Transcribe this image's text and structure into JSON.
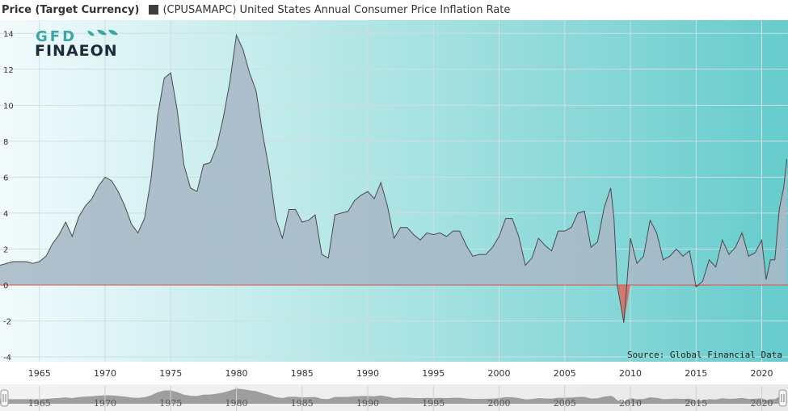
{
  "header": {
    "axis_title": "Price (Target Currency)",
    "legend_label": "(CPUSAMAPC) United States Annual Consumer Price Inflation Rate"
  },
  "logo": {
    "line1": "GFD",
    "line2": "FINAEON"
  },
  "source": "Source: Global Financial Data",
  "colors": {
    "area_positive": "#a9b9c8",
    "area_negative": "#d07a72",
    "line": "#4a4a4a",
    "bg_left": "#f2fbfc",
    "bg_right": "#66cccc",
    "zero_line": "#d9534f",
    "logo": "#1e2a38",
    "logo_accent": "#3aa6a6"
  },
  "chart_data": {
    "type": "area",
    "title": "",
    "xlabel": "",
    "ylabel": "Price (Target Currency)",
    "series": [
      {
        "name": "(CPUSAMAPC) United States Annual Consumer Price Inflation Rate",
        "x": [
          "1962-01",
          "1962-07",
          "1963-01",
          "1963-07",
          "1964-01",
          "1964-07",
          "1965-01",
          "1965-07",
          "1966-01",
          "1966-07",
          "1967-01",
          "1967-07",
          "1968-01",
          "1968-07",
          "1969-01",
          "1969-07",
          "1970-01",
          "1970-07",
          "1971-01",
          "1971-07",
          "1972-01",
          "1972-07",
          "1973-01",
          "1973-07",
          "1974-01",
          "1974-07",
          "1975-01",
          "1975-07",
          "1976-01",
          "1976-07",
          "1977-01",
          "1977-07",
          "1978-01",
          "1978-07",
          "1979-01",
          "1979-07",
          "1980-01",
          "1980-07",
          "1981-01",
          "1981-07",
          "1982-01",
          "1982-07",
          "1983-01",
          "1983-07",
          "1984-01",
          "1984-07",
          "1985-01",
          "1985-07",
          "1986-01",
          "1986-07",
          "1987-01",
          "1987-07",
          "1988-01",
          "1988-07",
          "1989-01",
          "1989-07",
          "1990-01",
          "1990-07",
          "1991-01",
          "1991-07",
          "1992-01",
          "1992-07",
          "1993-01",
          "1993-07",
          "1994-01",
          "1994-07",
          "1995-01",
          "1995-07",
          "1996-01",
          "1996-07",
          "1997-01",
          "1997-07",
          "1998-01",
          "1998-07",
          "1999-01",
          "1999-07",
          "2000-01",
          "2000-07",
          "2001-01",
          "2001-07",
          "2002-01",
          "2002-07",
          "2003-01",
          "2003-07",
          "2004-01",
          "2004-07",
          "2005-01",
          "2005-07",
          "2006-01",
          "2006-07",
          "2007-01",
          "2007-07",
          "2008-01",
          "2008-07",
          "2008-10",
          "2009-01",
          "2009-07",
          "2010-01",
          "2010-07",
          "2011-01",
          "2011-07",
          "2012-01",
          "2012-07",
          "2013-01",
          "2013-07",
          "2014-01",
          "2014-07",
          "2015-01",
          "2015-07",
          "2016-01",
          "2016-07",
          "2017-01",
          "2017-07",
          "2018-01",
          "2018-07",
          "2019-01",
          "2019-07",
          "2020-01",
          "2020-05",
          "2020-09",
          "2021-01",
          "2021-05",
          "2021-09",
          "2021-12"
        ],
        "values": [
          1.1,
          1.2,
          1.3,
          1.3,
          1.3,
          1.2,
          1.3,
          1.6,
          2.3,
          2.8,
          3.5,
          2.7,
          3.8,
          4.4,
          4.8,
          5.5,
          6.0,
          5.8,
          5.2,
          4.4,
          3.4,
          2.9,
          3.7,
          5.9,
          9.4,
          11.5,
          11.8,
          9.7,
          6.7,
          5.4,
          5.2,
          6.7,
          6.8,
          7.7,
          9.3,
          11.3,
          13.9,
          13.1,
          11.8,
          10.8,
          8.4,
          6.4,
          3.7,
          2.6,
          4.2,
          4.2,
          3.5,
          3.6,
          3.9,
          1.7,
          1.5,
          3.9,
          4.0,
          4.1,
          4.7,
          5.0,
          5.2,
          4.8,
          5.7,
          4.4,
          2.6,
          3.2,
          3.2,
          2.8,
          2.5,
          2.9,
          2.8,
          2.9,
          2.7,
          3.0,
          3.0,
          2.2,
          1.6,
          1.7,
          1.7,
          2.1,
          2.7,
          3.7,
          3.7,
          2.7,
          1.1,
          1.5,
          2.6,
          2.2,
          1.9,
          3.0,
          3.0,
          3.2,
          4.0,
          4.1,
          2.1,
          2.4,
          4.3,
          5.4,
          3.7,
          0.0,
          -2.1,
          2.6,
          1.2,
          1.6,
          3.6,
          2.9,
          1.4,
          1.6,
          2.0,
          1.6,
          1.9,
          -0.1,
          0.2,
          1.4,
          1.0,
          2.5,
          1.7,
          2.1,
          2.9,
          1.6,
          1.8,
          2.5,
          0.3,
          1.4,
          1.4,
          4.2,
          5.4,
          7.0
        ]
      }
    ],
    "ylim": [
      -4,
      15
    ],
    "yticks": [
      -4,
      -2,
      0,
      2,
      4,
      6,
      8,
      10,
      12,
      14
    ],
    "xlim": [
      "1962-01",
      "2021-12"
    ],
    "xticks": [
      "1965",
      "1970",
      "1975",
      "1980",
      "1985",
      "1990",
      "1995",
      "2000",
      "2005",
      "2010",
      "2015",
      "2020"
    ],
    "grid": true,
    "legend_position": "top-left"
  }
}
